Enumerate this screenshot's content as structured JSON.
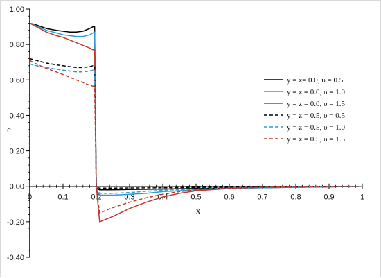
{
  "chart_data": {
    "type": "line",
    "xlabel": "x",
    "ylabel": "e",
    "xlim": [
      0,
      1
    ],
    "ylim": [
      -0.4,
      1.0
    ],
    "x_ticks": [
      "0",
      "0.1",
      "0.2",
      "0.3",
      "0.4",
      "0.5",
      "0.6",
      "0.7",
      "0.8",
      "0.9",
      "1"
    ],
    "y_ticks": [
      "-0.40",
      "-0.20",
      "0.00",
      "0.20",
      "0.40",
      "0.60",
      "0.80",
      "1.00"
    ],
    "grid": false,
    "legend_position": "right",
    "series": [
      {
        "name": "y = z= 0.0,  υ = 0.5",
        "color": "#000000",
        "dash": "solid",
        "x": [
          0,
          0.02,
          0.05,
          0.08,
          0.1,
          0.12,
          0.14,
          0.16,
          0.18,
          0.19,
          0.195,
          0.2,
          0.21,
          0.25,
          0.3,
          0.4,
          0.5,
          0.6,
          0.7,
          0.8,
          0.9,
          1.0
        ],
        "y": [
          0.92,
          0.91,
          0.89,
          0.88,
          0.875,
          0.87,
          0.87,
          0.875,
          0.89,
          0.9,
          0.9,
          -0.01,
          -0.02,
          -0.02,
          -0.018,
          -0.015,
          -0.012,
          -0.01,
          -0.008,
          -0.005,
          -0.003,
          0.0
        ]
      },
      {
        "name": "y = z = 0.0,  υ = 1.0",
        "color": "#2e9bd6",
        "dash": "solid",
        "x": [
          0,
          0.02,
          0.05,
          0.08,
          0.1,
          0.12,
          0.14,
          0.16,
          0.18,
          0.19,
          0.195,
          0.2,
          0.21,
          0.25,
          0.3,
          0.35,
          0.4,
          0.5,
          0.6,
          0.7,
          0.8,
          0.9,
          1.0
        ],
        "y": [
          0.92,
          0.905,
          0.88,
          0.865,
          0.855,
          0.85,
          0.845,
          0.845,
          0.855,
          0.865,
          0.87,
          -0.02,
          -0.05,
          -0.05,
          -0.045,
          -0.04,
          -0.03,
          -0.02,
          -0.012,
          -0.008,
          -0.005,
          -0.003,
          0.0
        ]
      },
      {
        "name": "y = z = 0.0,  υ = 1.5",
        "color": "#c0392b",
        "dash": "solid",
        "x": [
          0,
          0.02,
          0.05,
          0.08,
          0.1,
          0.12,
          0.14,
          0.16,
          0.18,
          0.19,
          0.195,
          0.2,
          0.21,
          0.25,
          0.3,
          0.35,
          0.4,
          0.45,
          0.5,
          0.6,
          0.7,
          0.8,
          0.9,
          1.0
        ],
        "y": [
          0.92,
          0.9,
          0.87,
          0.85,
          0.84,
          0.825,
          0.81,
          0.795,
          0.78,
          0.77,
          0.77,
          0.0,
          -0.2,
          -0.17,
          -0.125,
          -0.09,
          -0.06,
          -0.04,
          -0.025,
          -0.012,
          -0.006,
          -0.003,
          -0.001,
          0.0
        ]
      },
      {
        "name": "y = z = 0.5,  υ = 0.5",
        "color": "#000000",
        "dash": "dashed",
        "x": [
          0,
          0.02,
          0.05,
          0.08,
          0.1,
          0.12,
          0.14,
          0.16,
          0.18,
          0.19,
          0.195,
          0.2,
          0.21,
          0.25,
          0.3,
          0.4,
          0.5,
          0.6,
          0.7,
          0.8,
          0.9,
          1.0
        ],
        "y": [
          0.72,
          0.71,
          0.695,
          0.685,
          0.68,
          0.675,
          0.67,
          0.67,
          0.675,
          0.68,
          0.68,
          -0.005,
          -0.01,
          -0.01,
          -0.009,
          -0.008,
          -0.006,
          -0.005,
          -0.004,
          -0.003,
          -0.002,
          0.0
        ]
      },
      {
        "name": "y = z = 0.5,  υ = 1.0",
        "color": "#2e9bd6",
        "dash": "dashed",
        "x": [
          0,
          0.02,
          0.05,
          0.08,
          0.1,
          0.12,
          0.14,
          0.16,
          0.18,
          0.19,
          0.195,
          0.2,
          0.21,
          0.25,
          0.3,
          0.35,
          0.4,
          0.5,
          0.6,
          0.7,
          0.8,
          0.9,
          1.0
        ],
        "y": [
          0.69,
          0.68,
          0.67,
          0.66,
          0.655,
          0.65,
          0.645,
          0.645,
          0.65,
          0.655,
          0.655,
          -0.01,
          -0.04,
          -0.04,
          -0.035,
          -0.028,
          -0.022,
          -0.015,
          -0.01,
          -0.006,
          -0.004,
          -0.002,
          0.0
        ]
      },
      {
        "name": "y = z = 0.5,  υ = 1.5",
        "color": "#c0392b",
        "dash": "dashed",
        "x": [
          0,
          0.02,
          0.05,
          0.08,
          0.1,
          0.12,
          0.14,
          0.16,
          0.18,
          0.19,
          0.195,
          0.2,
          0.21,
          0.25,
          0.3,
          0.35,
          0.4,
          0.45,
          0.5,
          0.6,
          0.7,
          0.8,
          0.9,
          1.0
        ],
        "y": [
          0.71,
          0.69,
          0.665,
          0.645,
          0.63,
          0.615,
          0.6,
          0.585,
          0.57,
          0.565,
          0.565,
          -0.01,
          -0.15,
          -0.12,
          -0.09,
          -0.065,
          -0.045,
          -0.03,
          -0.02,
          -0.01,
          -0.005,
          -0.002,
          -0.001,
          0.0
        ]
      }
    ]
  }
}
